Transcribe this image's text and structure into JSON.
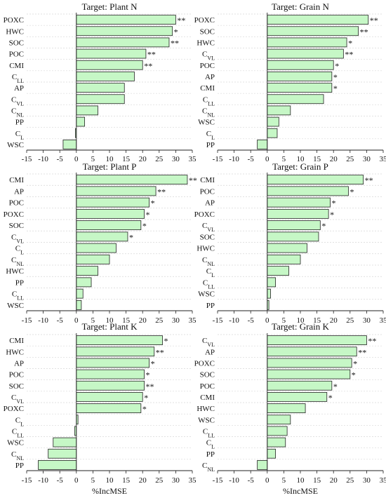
{
  "chart_data": [
    {
      "type": "bar",
      "orientation": "horizontal",
      "title": "Target: Plant N",
      "categories": [
        "POXC",
        "HWC",
        "SOC",
        "POC",
        "CMI",
        "C_LL",
        "AP",
        "C_VL",
        "C_NL",
        "PP",
        "C_L",
        "WSC"
      ],
      "values": [
        30,
        29,
        28,
        21,
        20,
        17.5,
        14.5,
        14.5,
        6.5,
        2.5,
        -0.3,
        -4
      ],
      "significance": [
        "**",
        "*",
        "**",
        "**",
        "**",
        "",
        "",
        "",
        "",
        "",
        "",
        ""
      ],
      "xlim": [
        -15,
        35
      ],
      "xticks": [
        -15,
        -10,
        -5,
        0,
        5,
        10,
        15,
        20,
        25,
        30,
        35
      ],
      "xlabel": "",
      "color": "#c6f7c6",
      "grid": true
    },
    {
      "type": "bar",
      "orientation": "horizontal",
      "title": "Target: Grain N",
      "categories": [
        "POXC",
        "SOC",
        "HWC",
        "C_VL",
        "POC",
        "AP",
        "CMI",
        "C_LL",
        "C_NL",
        "WSC",
        "C_L",
        "PP"
      ],
      "values": [
        30.5,
        27.5,
        24,
        23,
        20,
        19.5,
        19.5,
        17,
        7,
        3.5,
        3,
        -3
      ],
      "significance": [
        "**",
        "**",
        "*",
        "**",
        "*",
        "*",
        "*",
        "",
        "",
        "",
        "",
        ""
      ],
      "xlim": [
        -15,
        35
      ],
      "xticks": [
        -15,
        -10,
        -5,
        0,
        5,
        10,
        15,
        20,
        25,
        30,
        35
      ],
      "xlabel": "",
      "color": "#c6f7c6",
      "grid": true
    },
    {
      "type": "bar",
      "orientation": "horizontal",
      "title": "Target: Plant P",
      "categories": [
        "CMI",
        "AP",
        "POC",
        "POXC",
        "SOC",
        "C_VL",
        "C_L",
        "C_NL",
        "HWC",
        "PP",
        "C_LL",
        "WSC"
      ],
      "values": [
        33.5,
        24,
        22,
        20.5,
        19.5,
        15.5,
        12,
        10,
        6.5,
        4.5,
        2,
        1.5
      ],
      "significance": [
        "**",
        "**",
        "*",
        "*",
        "*",
        "*",
        "",
        "",
        "",
        "",
        "",
        ""
      ],
      "xlim": [
        -15,
        35
      ],
      "xticks": [
        -15,
        -10,
        -5,
        0,
        5,
        10,
        15,
        20,
        25,
        30,
        35
      ],
      "xlabel": "",
      "color": "#c6f7c6",
      "grid": true
    },
    {
      "type": "bar",
      "orientation": "horizontal",
      "title": "Target: Grain P",
      "categories": [
        "CMI",
        "POC",
        "AP",
        "POXC",
        "C_VL",
        "SOC",
        "HWC",
        "C_NL",
        "C_L",
        "C_LL",
        "WSC",
        "PP"
      ],
      "values": [
        29,
        24.5,
        19,
        18.5,
        16,
        15.5,
        12,
        10,
        6.5,
        2.5,
        1,
        0.5
      ],
      "significance": [
        "**",
        "*",
        "*",
        "*",
        "*",
        "",
        "",
        "",
        "",
        "",
        "",
        ""
      ],
      "xlim": [
        -15,
        35
      ],
      "xticks": [
        -15,
        -10,
        -5,
        0,
        5,
        10,
        15,
        20,
        25,
        30,
        35
      ],
      "xlabel": "",
      "color": "#c6f7c6",
      "grid": true
    },
    {
      "type": "bar",
      "orientation": "horizontal",
      "title": "Target: Plant K",
      "categories": [
        "CMI",
        "HWC",
        "AP",
        "POC",
        "SOC",
        "C_VL",
        "POXC",
        "C_L",
        "C_LL",
        "WSC",
        "C_NL",
        "PP"
      ],
      "values": [
        26,
        23.5,
        22,
        20.5,
        20.5,
        20,
        19.5,
        0.5,
        -0.5,
        -7,
        -8.5,
        -11.5
      ],
      "significance": [
        "*",
        "**",
        "*",
        "*",
        "**",
        "*",
        "*",
        "",
        "",
        "",
        "",
        ""
      ],
      "xlim": [
        -15,
        35
      ],
      "xticks": [
        -15,
        -10,
        -5,
        0,
        5,
        10,
        15,
        20,
        25,
        30,
        35
      ],
      "xlabel": "%IncMSE",
      "color": "#c6f7c6",
      "grid": true
    },
    {
      "type": "bar",
      "orientation": "horizontal",
      "title": "Target: Grain K",
      "categories": [
        "C_VL",
        "AP",
        "POXC",
        "SOC",
        "POC",
        "CMI",
        "HWC",
        "WSC",
        "C_LL",
        "C_L",
        "PP",
        "C_NL"
      ],
      "values": [
        30,
        27,
        25.5,
        25,
        19.5,
        18,
        11.5,
        7,
        6,
        5.5,
        2.5,
        -3
      ],
      "significance": [
        "**",
        "**",
        "*",
        "*",
        "*",
        "*",
        "",
        "",
        "",
        "",
        "",
        ""
      ],
      "xlim": [
        -15,
        35
      ],
      "xticks": [
        -15,
        -10,
        -5,
        0,
        5,
        10,
        15,
        20,
        25,
        30,
        35
      ],
      "xlabel": "%IncMSE",
      "color": "#c6f7c6",
      "grid": true
    }
  ]
}
